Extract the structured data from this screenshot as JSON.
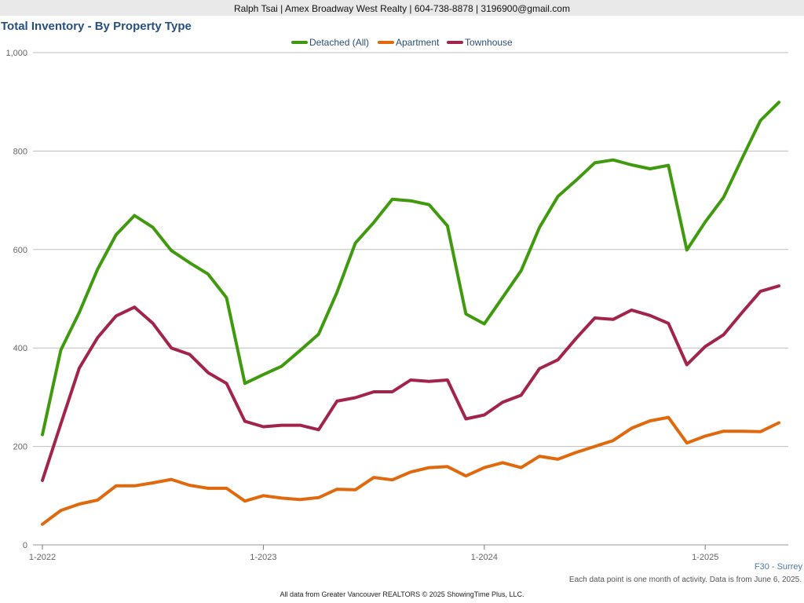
{
  "header": {
    "banner": "Ralph Tsai | Amex Broadway West Realty | 604-738-8878 | 3196900@gmail.com"
  },
  "footer": {
    "region": "F30 - Surrey",
    "note": "Each data point is one month of activity. Data is from June 6, 2025.",
    "source": "All data from Greater Vancouver REALTORS © 2025 ShowingTime Plus, LLC."
  },
  "chart_data": {
    "type": "line",
    "title": "Total Inventory - By Property Type",
    "xlabel": "",
    "ylabel": "",
    "ylim": [
      0,
      1000
    ],
    "yticks": [
      0,
      200,
      400,
      600,
      800,
      1000
    ],
    "ytick_labels": [
      "0",
      "200",
      "400",
      "600",
      "800",
      "1,000"
    ],
    "xtick_labels": [
      "1-2022",
      "1-2023",
      "1-2024",
      "1-2025"
    ],
    "xtick_months": [
      "2022-01",
      "2023-01",
      "2024-01",
      "2025-01"
    ],
    "x": [
      "2022-01",
      "2022-02",
      "2022-03",
      "2022-04",
      "2022-05",
      "2022-06",
      "2022-07",
      "2022-08",
      "2022-09",
      "2022-10",
      "2022-11",
      "2022-12",
      "2023-01",
      "2023-02",
      "2023-03",
      "2023-04",
      "2023-05",
      "2023-06",
      "2023-07",
      "2023-08",
      "2023-09",
      "2023-10",
      "2023-11",
      "2023-12",
      "2024-01",
      "2024-02",
      "2024-03",
      "2024-04",
      "2024-05",
      "2024-06",
      "2024-07",
      "2024-08",
      "2024-09",
      "2024-10",
      "2024-11",
      "2024-12",
      "2025-01",
      "2025-02",
      "2025-03",
      "2025-04",
      "2025-05"
    ],
    "grid": true,
    "legend_position": "top-center",
    "series": [
      {
        "name": "Detached (All)",
        "color": "#3f9a0e",
        "values": [
          224,
          396,
          472,
          560,
          630,
          669,
          645,
          598,
          573,
          550,
          502,
          328,
          346,
          363,
          395,
          428,
          513,
          613,
          655,
          702,
          699,
          691,
          648,
          469,
          449,
          503,
          557,
          645,
          708,
          741,
          776,
          782,
          772,
          764,
          771,
          599,
          656,
          706,
          785,
          862,
          899
        ]
      },
      {
        "name": "Apartment",
        "color": "#e0690e",
        "values": [
          42,
          70,
          83,
          91,
          120,
          120,
          126,
          133,
          121,
          115,
          115,
          89,
          100,
          95,
          92,
          96,
          113,
          112,
          137,
          132,
          148,
          157,
          159,
          140,
          157,
          167,
          157,
          180,
          174,
          188,
          200,
          212,
          237,
          252,
          259,
          207,
          221,
          231,
          231,
          230,
          248
        ]
      },
      {
        "name": "Townhouse",
        "color": "#a3244a",
        "values": [
          131,
          246,
          359,
          421,
          465,
          483,
          450,
          400,
          387,
          350,
          328,
          251,
          240,
          243,
          243,
          234,
          292,
          299,
          311,
          311,
          335,
          332,
          335,
          256,
          264,
          290,
          304,
          358,
          376,
          420,
          461,
          458,
          477,
          466,
          450,
          366,
          403,
          427,
          472,
          515,
          526
        ]
      }
    ]
  }
}
